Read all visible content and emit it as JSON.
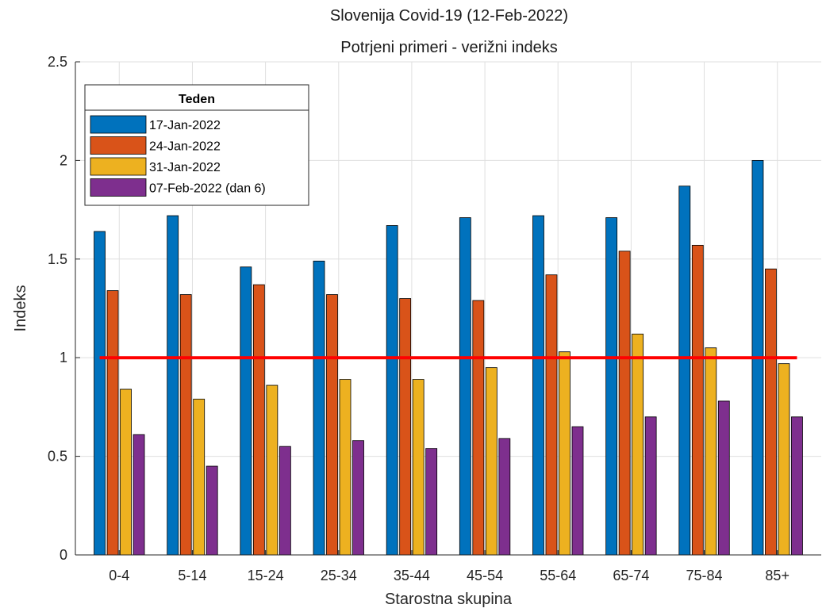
{
  "chart_data": {
    "type": "bar",
    "title": "Slovenija Covid-19 (12-Feb-2022)",
    "subtitle": "Potrjeni primeri - verižni indeks",
    "xlabel": "Starostna skupina",
    "ylabel": "Indeks",
    "ylim": [
      0,
      2.5
    ],
    "yticks": [
      "0",
      "0.5",
      "1",
      "1.5",
      "2",
      "2.5"
    ],
    "grid": true,
    "legend_title": "Teden",
    "legend_position": "top-left",
    "categories": [
      "0-4",
      "5-14",
      "15-24",
      "25-34",
      "35-44",
      "45-54",
      "55-64",
      "65-74",
      "75-84",
      "85+"
    ],
    "series": [
      {
        "name": "17-Jan-2022",
        "color": "#0072BD",
        "values": [
          1.64,
          1.72,
          1.46,
          1.49,
          1.67,
          1.71,
          1.72,
          1.71,
          1.87,
          2.0
        ]
      },
      {
        "name": "24-Jan-2022",
        "color": "#D95319",
        "values": [
          1.34,
          1.32,
          1.37,
          1.32,
          1.3,
          1.29,
          1.42,
          1.54,
          1.57,
          1.45
        ]
      },
      {
        "name": "31-Jan-2022",
        "color": "#EDB120",
        "values": [
          0.84,
          0.79,
          0.86,
          0.89,
          0.89,
          0.95,
          1.03,
          1.12,
          1.05,
          0.97
        ]
      },
      {
        "name": "07-Feb-2022 (dan 6)",
        "color": "#7E2F8E",
        "values": [
          0.61,
          0.45,
          0.55,
          0.58,
          0.54,
          0.59,
          0.65,
          0.7,
          0.78,
          0.7
        ]
      }
    ],
    "reference_line": {
      "y": 1,
      "color": "#FF0000"
    }
  }
}
